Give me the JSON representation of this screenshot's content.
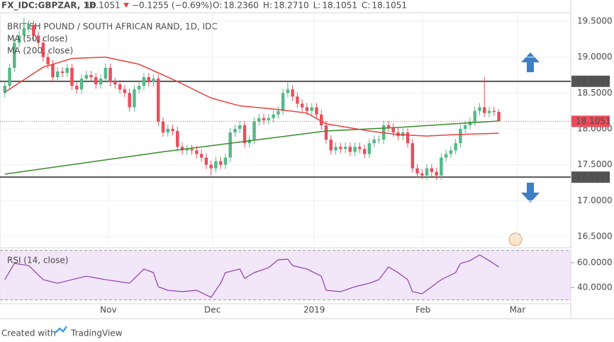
{
  "header": {
    "symbol": "FX_IDC:GBPZAR, 1D",
    "last": "18.1051",
    "change": "−0.1255 (−0.69%)",
    "ohlc": [
      {
        "label": "O:",
        "value": "18.2360"
      },
      {
        "label": "H:",
        "value": "18.2710"
      },
      {
        "label": "L:",
        "value": "18.1051"
      },
      {
        "label": "C:",
        "value": "18.1051"
      }
    ]
  },
  "footer": {
    "created": "Created with",
    "brand": "TradingView"
  },
  "chart_data": {
    "type": "candlestick",
    "title": "BRITISH POUND / SOUTH AFRICAN RAND, 1D, IDC",
    "up_color": "#53b987",
    "down_color": "#eb4d5c",
    "xlim": [
      -1,
      118
    ],
    "xticks": [
      {
        "value": 21.6,
        "label": "Nov"
      },
      {
        "value": 43.3,
        "label": "Dec"
      },
      {
        "value": 64.5,
        "label": "2019"
      },
      {
        "value": 87.2,
        "label": "Feb"
      },
      {
        "value": 106.9,
        "label": "Mar"
      }
    ],
    "ylim": [
      16.362,
      19.618
    ],
    "yticks": [
      {
        "value": 19.5,
        "label": "19.5000"
      },
      {
        "value": 19.0,
        "label": "19.0000"
      },
      {
        "value": 18.5,
        "label": "18.5000"
      },
      {
        "value": 18.0,
        "label": "18.0000"
      },
      {
        "value": 17.5,
        "label": "17.5000"
      },
      {
        "value": 17.0,
        "label": "17.0000"
      },
      {
        "value": 16.5,
        "label": "16.5000"
      }
    ],
    "levels": [
      18.6627,
      17.3271
    ],
    "last_price": 18.1051,
    "candles": [
      [
        18.5,
        18.66,
        18.44,
        18.6
      ],
      [
        18.6,
        18.91,
        18.54,
        18.85
      ],
      [
        18.85,
        19.26,
        18.79,
        19.2
      ],
      [
        19.2,
        19.36,
        19.14,
        19.3
      ],
      [
        19.3,
        19.55,
        19.24,
        19.4
      ],
      [
        19.4,
        19.51,
        19.34,
        19.45
      ],
      [
        19.45,
        19.51,
        19.24,
        19.3
      ],
      [
        19.3,
        19.36,
        19.14,
        19.2
      ],
      [
        19.2,
        19.26,
        18.94,
        19.0
      ],
      [
        19.0,
        19.06,
        18.84,
        18.9
      ],
      [
        18.9,
        18.96,
        18.66,
        18.72
      ],
      [
        18.72,
        18.86,
        18.66,
        18.8
      ],
      [
        18.8,
        18.86,
        18.72,
        18.78
      ],
      [
        18.78,
        18.91,
        18.72,
        18.85
      ],
      [
        18.85,
        18.91,
        18.54,
        18.6
      ],
      [
        18.6,
        18.66,
        18.49,
        18.55
      ],
      [
        18.55,
        18.76,
        18.49,
        18.7
      ],
      [
        18.7,
        18.81,
        18.64,
        18.75
      ],
      [
        18.75,
        18.81,
        18.66,
        18.72
      ],
      [
        18.72,
        18.78,
        18.56,
        18.62
      ],
      [
        18.62,
        18.76,
        18.56,
        18.7
      ],
      [
        18.7,
        18.91,
        18.64,
        18.85
      ],
      [
        18.85,
        18.91,
        18.59,
        18.65
      ],
      [
        18.65,
        18.71,
        18.56,
        18.62
      ],
      [
        18.62,
        18.68,
        18.49,
        18.55
      ],
      [
        18.55,
        18.61,
        18.44,
        18.5
      ],
      [
        18.5,
        18.56,
        18.24,
        18.3
      ],
      [
        18.3,
        18.61,
        18.24,
        18.55
      ],
      [
        18.55,
        18.66,
        18.49,
        18.6
      ],
      [
        18.6,
        18.78,
        18.54,
        18.72
      ],
      [
        18.72,
        18.78,
        18.59,
        18.65
      ],
      [
        18.65,
        18.76,
        18.59,
        18.7
      ],
      [
        18.7,
        18.76,
        18.04,
        18.1
      ],
      [
        18.1,
        18.16,
        17.89,
        17.95
      ],
      [
        17.95,
        18.06,
        17.89,
        18.0
      ],
      [
        18.0,
        18.06,
        17.91,
        17.97
      ],
      [
        17.97,
        18.03,
        17.69,
        17.75
      ],
      [
        17.75,
        17.81,
        17.64,
        17.7
      ],
      [
        17.7,
        17.78,
        17.64,
        17.72
      ],
      [
        17.72,
        17.78,
        17.64,
        17.7
      ],
      [
        17.7,
        17.76,
        17.59,
        17.65
      ],
      [
        17.65,
        17.71,
        17.54,
        17.6
      ],
      [
        17.6,
        17.66,
        17.44,
        17.5
      ],
      [
        17.5,
        17.56,
        17.35,
        17.45
      ],
      [
        17.45,
        17.61,
        17.39,
        17.55
      ],
      [
        17.55,
        17.61,
        17.44,
        17.5
      ],
      [
        17.5,
        17.66,
        17.44,
        17.6
      ],
      [
        17.6,
        18.01,
        17.54,
        17.95
      ],
      [
        17.95,
        18.06,
        17.89,
        18.0
      ],
      [
        18.0,
        18.11,
        17.94,
        18.05
      ],
      [
        18.05,
        18.11,
        17.74,
        17.8
      ],
      [
        17.8,
        17.91,
        17.74,
        17.85
      ],
      [
        17.85,
        18.16,
        17.79,
        18.1
      ],
      [
        18.1,
        18.21,
        18.04,
        18.15
      ],
      [
        18.15,
        18.21,
        18.06,
        18.12
      ],
      [
        18.12,
        18.21,
        18.06,
        18.15
      ],
      [
        18.15,
        18.26,
        18.09,
        18.2
      ],
      [
        18.2,
        18.31,
        18.14,
        18.25
      ],
      [
        18.25,
        18.56,
        18.19,
        18.5
      ],
      [
        18.5,
        18.66,
        18.44,
        18.55
      ],
      [
        18.55,
        18.61,
        18.39,
        18.45
      ],
      [
        18.45,
        18.51,
        18.29,
        18.35
      ],
      [
        18.35,
        18.41,
        18.24,
        18.3
      ],
      [
        18.3,
        18.36,
        18.19,
        18.25
      ],
      [
        18.25,
        18.36,
        18.19,
        18.3
      ],
      [
        18.3,
        18.36,
        18.14,
        18.2
      ],
      [
        18.2,
        18.26,
        17.99,
        18.05
      ],
      [
        18.05,
        18.11,
        17.79,
        17.85
      ],
      [
        17.85,
        17.91,
        17.64,
        17.7
      ],
      [
        17.7,
        17.81,
        17.64,
        17.75
      ],
      [
        17.75,
        17.81,
        17.66,
        17.72
      ],
      [
        17.72,
        17.81,
        17.66,
        17.75
      ],
      [
        17.75,
        17.81,
        17.62,
        17.68
      ],
      [
        17.68,
        17.81,
        17.62,
        17.75
      ],
      [
        17.75,
        17.81,
        17.66,
        17.72
      ],
      [
        17.72,
        17.78,
        17.59,
        17.65
      ],
      [
        17.65,
        17.86,
        17.59,
        17.8
      ],
      [
        17.8,
        17.91,
        17.74,
        17.85
      ],
      [
        17.85,
        17.91,
        17.79,
        17.85
      ],
      [
        17.85,
        18.11,
        17.79,
        18.05
      ],
      [
        18.05,
        18.11,
        17.96,
        18.02
      ],
      [
        18.02,
        18.08,
        17.89,
        17.95
      ],
      [
        17.95,
        18.01,
        17.84,
        17.9
      ],
      [
        17.9,
        18.01,
        17.84,
        17.95
      ],
      [
        17.95,
        18.01,
        17.74,
        17.8
      ],
      [
        17.8,
        17.86,
        17.39,
        17.45
      ],
      [
        17.45,
        17.51,
        17.32,
        17.38
      ],
      [
        17.38,
        17.44,
        17.3,
        17.35
      ],
      [
        17.35,
        17.51,
        17.29,
        17.45
      ],
      [
        17.45,
        17.51,
        17.34,
        17.4
      ],
      [
        17.4,
        17.46,
        17.29,
        17.35
      ],
      [
        17.35,
        17.66,
        17.29,
        17.6
      ],
      [
        17.6,
        17.71,
        17.54,
        17.65
      ],
      [
        17.65,
        17.76,
        17.59,
        17.7
      ],
      [
        17.7,
        17.86,
        17.64,
        17.8
      ],
      [
        17.8,
        18.06,
        17.74,
        18.0
      ],
      [
        18.0,
        18.11,
        17.94,
        18.05
      ],
      [
        18.05,
        18.16,
        17.99,
        18.1
      ],
      [
        18.1,
        18.31,
        18.04,
        18.25
      ],
      [
        18.25,
        18.36,
        18.19,
        18.3
      ],
      [
        18.3,
        18.72,
        18.16,
        18.22
      ],
      [
        18.22,
        18.31,
        18.16,
        18.25
      ],
      [
        18.25,
        18.31,
        18.18,
        18.236
      ],
      [
        18.236,
        18.271,
        18.1051,
        18.1051
      ]
    ],
    "series": [
      {
        "name": "MA (50, close)",
        "color": "#e8413c",
        "x": [
          0,
          8,
          14,
          21,
          28,
          36,
          43,
          49,
          57,
          63,
          67,
          76,
          82,
          88,
          94,
          103
        ],
        "values": [
          18.51,
          18.86,
          18.98,
          19.0,
          18.9,
          18.66,
          18.43,
          18.32,
          18.27,
          18.22,
          18.07,
          17.97,
          17.92,
          17.9,
          17.92,
          17.94
        ]
      },
      {
        "name": "MA (200, close)",
        "color": "#3a8a2e",
        "x": [
          0,
          33,
          67,
          82,
          103
        ],
        "values": [
          17.37,
          17.68,
          17.97,
          18.02,
          18.11
        ]
      }
    ],
    "rsi": {
      "name": "RSI (14, close)",
      "color": "#8e3fa8",
      "ylim": [
        29.1,
        70.9
      ],
      "band": [
        30,
        70
      ],
      "yticks": [
        {
          "value": 60,
          "label": "60.0000"
        },
        {
          "value": 40,
          "label": "40.0000"
        }
      ],
      "x": [
        0,
        2,
        5,
        8,
        11,
        14,
        17,
        21,
        26,
        29,
        31,
        32,
        34,
        37,
        40,
        43,
        45,
        46,
        49,
        50,
        52,
        55,
        57,
        59,
        60,
        63,
        66,
        67,
        70,
        73,
        76,
        78,
        80,
        82,
        84,
        85,
        87,
        89,
        91,
        94,
        95,
        97,
        99,
        101,
        103
      ],
      "values": [
        46.3,
        59.4,
        57.7,
        46.3,
        43.4,
        46.3,
        49.1,
        46.3,
        43.4,
        54.9,
        52,
        40.6,
        37.7,
        36.6,
        37.7,
        32,
        43.4,
        52,
        54.9,
        47.4,
        52,
        56,
        62.3,
        62.9,
        57.7,
        54.9,
        49.1,
        37.7,
        36.6,
        40.6,
        43.4,
        46.3,
        56.6,
        52,
        46.3,
        36.6,
        34.9,
        40.6,
        46.3,
        52,
        59.4,
        61.7,
        66.3,
        61.7,
        56.6
      ]
    }
  }
}
